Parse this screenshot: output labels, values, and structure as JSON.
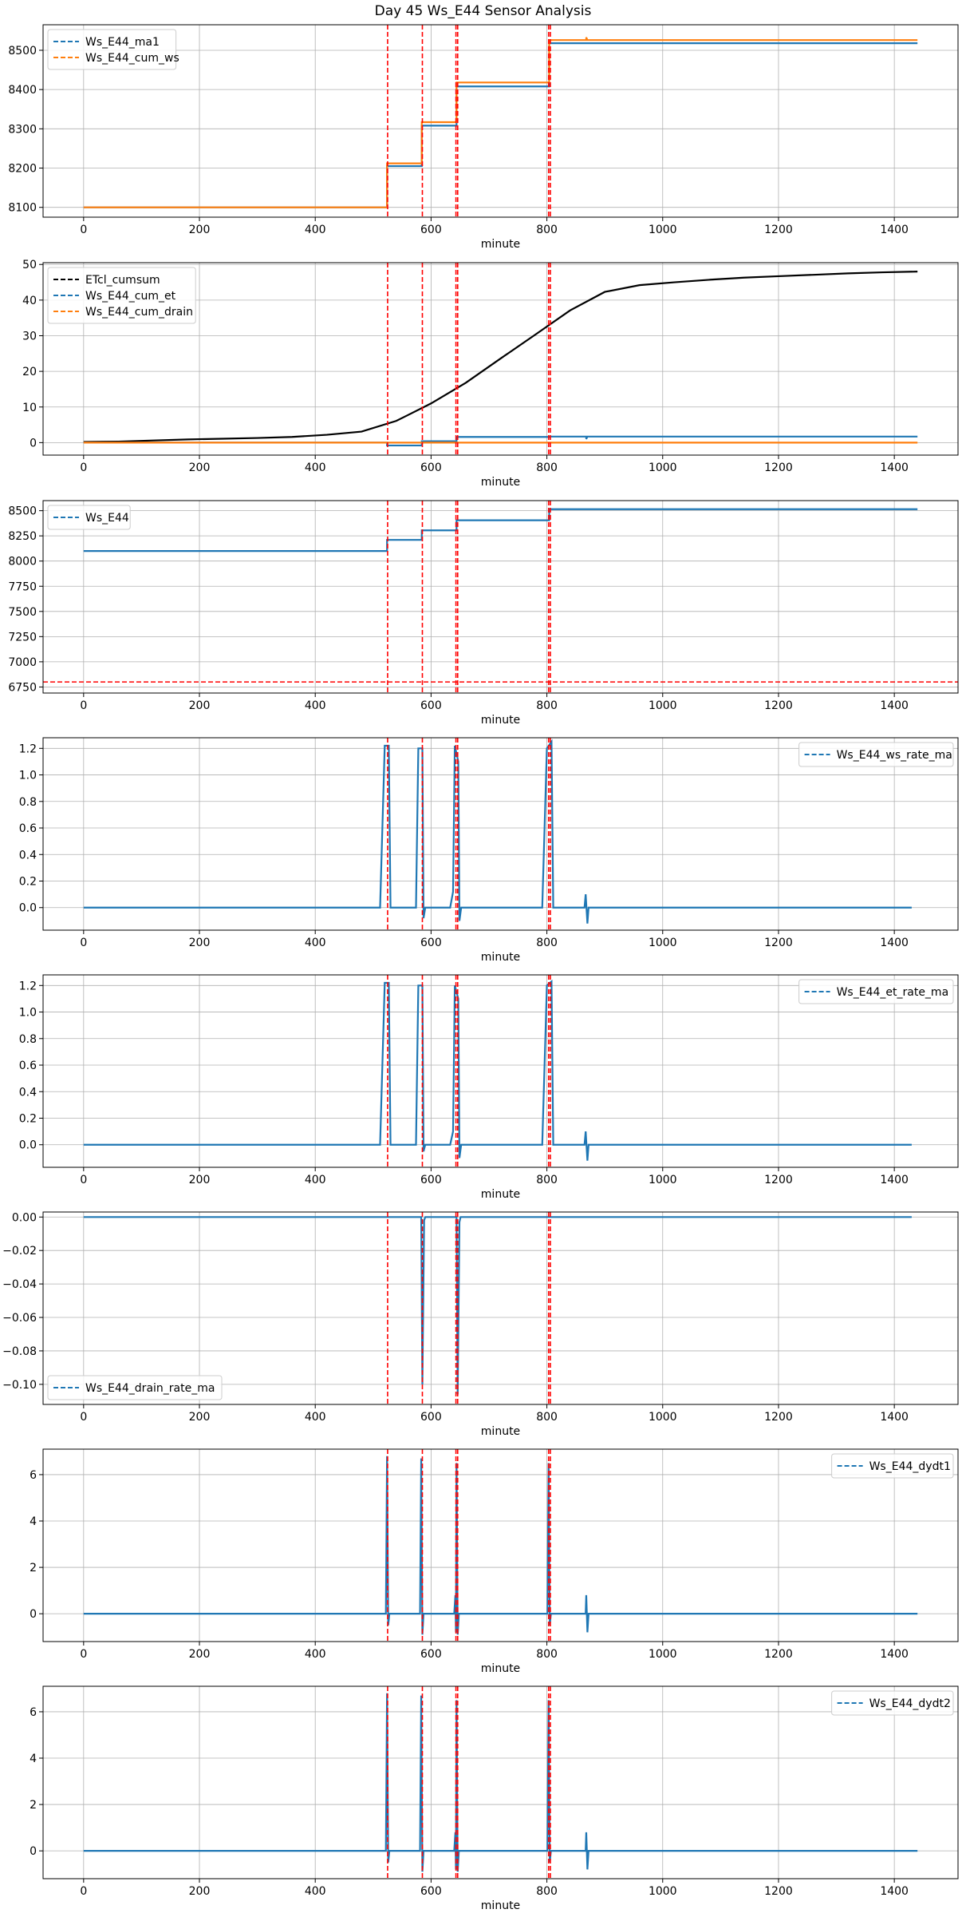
{
  "figure": {
    "title": "Day 45 Ws_E44 Sensor Analysis"
  },
  "colors": {
    "blue": "#1f77b4",
    "orange": "#ff7f0e",
    "black": "#000000",
    "red": "#ff0000",
    "grid": "#b0b0b0"
  },
  "chart_data": [
    {
      "type": "line",
      "xlabel": "minute",
      "xlim": [
        -70,
        1510
      ],
      "ylim": [
        8075,
        8565
      ],
      "xticks": [
        0,
        200,
        400,
        600,
        800,
        1000,
        1200,
        1400
      ],
      "yticks": [
        8100,
        8200,
        8300,
        8400,
        8500
      ],
      "legend_position": "upper left",
      "vlines": [
        525,
        585,
        643,
        646,
        803,
        806
      ],
      "hlines": [],
      "grid": true,
      "series": [
        {
          "name": "Ws_E44_ma1",
          "color": "blue",
          "style": "step",
          "points": [
            [
              0,
              8100
            ],
            [
              524,
              8100
            ],
            [
              524,
              8205
            ],
            [
              584,
              8205
            ],
            [
              584,
              8308
            ],
            [
              644,
              8308
            ],
            [
              644,
              8408
            ],
            [
              804,
              8408
            ],
            [
              804,
              8518
            ],
            [
              1440,
              8518
            ]
          ]
        },
        {
          "name": "Ws_E44_cum_ws",
          "color": "orange",
          "style": "step",
          "points": [
            [
              0,
              8100
            ],
            [
              524,
              8100
            ],
            [
              524,
              8212
            ],
            [
              584,
              8212
            ],
            [
              584,
              8317
            ],
            [
              644,
              8317
            ],
            [
              644,
              8418
            ],
            [
              804,
              8418
            ],
            [
              804,
              8526
            ],
            [
              868,
              8526
            ],
            [
              868,
              8533
            ],
            [
              870,
              8526
            ],
            [
              1440,
              8526
            ]
          ]
        }
      ]
    },
    {
      "type": "line",
      "xlabel": "minute",
      "xlim": [
        -70,
        1510
      ],
      "ylim": [
        -3.5,
        50.5
      ],
      "xticks": [
        0,
        200,
        400,
        600,
        800,
        1000,
        1200,
        1400
      ],
      "yticks": [
        0,
        10,
        20,
        30,
        40,
        50
      ],
      "legend_position": "upper left",
      "vlines": [
        525,
        585,
        643,
        646,
        803,
        806
      ],
      "hlines": [],
      "grid": true,
      "series": [
        {
          "name": "ETcl_cumsum",
          "color": "black",
          "style": "step",
          "points": [
            [
              0,
              0.2
            ],
            [
              60,
              0.3
            ],
            [
              120,
              0.6
            ],
            [
              180,
              0.9
            ],
            [
              240,
              1.1
            ],
            [
              300,
              1.3
            ],
            [
              360,
              1.6
            ],
            [
              420,
              2.2
            ],
            [
              480,
              3.1
            ],
            [
              540,
              6.1
            ],
            [
              600,
              11.0
            ],
            [
              660,
              16.8
            ],
            [
              720,
              23.6
            ],
            [
              780,
              30.3
            ],
            [
              840,
              37.1
            ],
            [
              900,
              42.3
            ],
            [
              960,
              44.2
            ],
            [
              1020,
              45.0
            ],
            [
              1080,
              45.7
            ],
            [
              1140,
              46.3
            ],
            [
              1200,
              46.7
            ],
            [
              1260,
              47.1
            ],
            [
              1320,
              47.5
            ],
            [
              1380,
              47.8
            ],
            [
              1440,
              48.0
            ]
          ]
        },
        {
          "name": "Ws_E44_cum_et",
          "color": "blue",
          "style": "step",
          "points": [
            [
              0,
              0
            ],
            [
              524,
              0
            ],
            [
              524,
              -0.8
            ],
            [
              584,
              -0.8
            ],
            [
              584,
              0.4
            ],
            [
              644,
              0.4
            ],
            [
              644,
              1.6
            ],
            [
              804,
              1.6
            ],
            [
              804,
              1.7
            ],
            [
              868,
              1.7
            ],
            [
              868,
              1.0
            ],
            [
              870,
              1.7
            ],
            [
              1440,
              1.7
            ]
          ]
        },
        {
          "name": "Ws_E44_cum_drain",
          "color": "orange",
          "style": "step",
          "points": [
            [
              0,
              0
            ],
            [
              1440,
              0
            ]
          ]
        }
      ]
    },
    {
      "type": "line",
      "xlabel": "minute",
      "xlim": [
        -70,
        1510
      ],
      "ylim": [
        6690,
        8600
      ],
      "xticks": [
        0,
        200,
        400,
        600,
        800,
        1000,
        1200,
        1400
      ],
      "yticks": [
        6750,
        7000,
        7250,
        7500,
        7750,
        8000,
        8250,
        8500
      ],
      "legend_position": "upper left",
      "vlines": [
        525,
        585,
        643,
        646,
        803,
        806
      ],
      "hlines": [
        6800
      ],
      "grid": true,
      "series": [
        {
          "name": "Ws_E44",
          "color": "blue",
          "style": "step",
          "points": [
            [
              0,
              8100
            ],
            [
              524,
              8100
            ],
            [
              524,
              8210
            ],
            [
              584,
              8210
            ],
            [
              584,
              8305
            ],
            [
              644,
              8305
            ],
            [
              644,
              8405
            ],
            [
              804,
              8405
            ],
            [
              804,
              8515
            ],
            [
              1440,
              8515
            ]
          ]
        }
      ]
    },
    {
      "type": "line",
      "xlabel": "minute",
      "xlim": [
        -70,
        1510
      ],
      "ylim": [
        -0.17,
        1.28
      ],
      "xticks": [
        0,
        200,
        400,
        600,
        800,
        1000,
        1200,
        1400
      ],
      "yticks": [
        0.0,
        0.2,
        0.4,
        0.6,
        0.8,
        1.0,
        1.2
      ],
      "legend_position": "upper right",
      "vlines": [
        525,
        585,
        643,
        646,
        803,
        806
      ],
      "hlines": [],
      "grid": true,
      "series": [
        {
          "name": "Ws_E44_ws_rate_ma",
          "color": "blue",
          "style": "line",
          "points": [
            [
              0,
              0
            ],
            [
              512,
              0
            ],
            [
              520,
              1.22
            ],
            [
              527,
              1.22
            ],
            [
              530,
              0
            ],
            [
              574,
              0
            ],
            [
              578,
              1.2
            ],
            [
              585,
              1.2
            ],
            [
              587,
              -0.08
            ],
            [
              590,
              0
            ],
            [
              633,
              0
            ],
            [
              638,
              0.12
            ],
            [
              641,
              1.22
            ],
            [
              647,
              1.1
            ],
            [
              649,
              -0.1
            ],
            [
              652,
              0
            ],
            [
              792,
              0
            ],
            [
              800,
              1.2
            ],
            [
              808,
              1.25
            ],
            [
              811,
              0
            ],
            [
              865,
              0
            ],
            [
              867,
              0.1
            ],
            [
              870,
              -0.12
            ],
            [
              872,
              0
            ],
            [
              1430,
              0
            ]
          ]
        }
      ]
    },
    {
      "type": "line",
      "xlabel": "minute",
      "xlim": [
        -70,
        1510
      ],
      "ylim": [
        -0.17,
        1.28
      ],
      "xticks": [
        0,
        200,
        400,
        600,
        800,
        1000,
        1200,
        1400
      ],
      "yticks": [
        0.0,
        0.2,
        0.4,
        0.6,
        0.8,
        1.0,
        1.2
      ],
      "legend_position": "upper right",
      "vlines": [
        525,
        585,
        643,
        646,
        803,
        806
      ],
      "hlines": [],
      "grid": true,
      "series": [
        {
          "name": "Ws_E44_et_rate_ma",
          "color": "blue",
          "style": "line",
          "points": [
            [
              0,
              0
            ],
            [
              512,
              0
            ],
            [
              520,
              1.22
            ],
            [
              527,
              1.22
            ],
            [
              530,
              0
            ],
            [
              574,
              0
            ],
            [
              578,
              1.2
            ],
            [
              585,
              1.2
            ],
            [
              587,
              -0.05
            ],
            [
              590,
              0
            ],
            [
              633,
              0
            ],
            [
              638,
              0.1
            ],
            [
              641,
              1.2
            ],
            [
              647,
              1.1
            ],
            [
              649,
              -0.1
            ],
            [
              652,
              0
            ],
            [
              792,
              0
            ],
            [
              800,
              1.2
            ],
            [
              808,
              1.23
            ],
            [
              811,
              0
            ],
            [
              865,
              0
            ],
            [
              867,
              0.1
            ],
            [
              870,
              -0.12
            ],
            [
              872,
              0
            ],
            [
              1430,
              0
            ]
          ]
        }
      ]
    },
    {
      "type": "line",
      "xlabel": "minute",
      "xlim": [
        -70,
        1510
      ],
      "ylim": [
        -0.112,
        0.003
      ],
      "xticks": [
        0,
        200,
        400,
        600,
        800,
        1000,
        1200,
        1400
      ],
      "yticks": [
        -0.1,
        -0.08,
        -0.06,
        -0.04,
        -0.02,
        0.0
      ],
      "legend_position": "lower left",
      "vlines": [
        525,
        585,
        643,
        646,
        803,
        806
      ],
      "hlines": [],
      "grid": true,
      "series": [
        {
          "name": "Ws_E44_drain_rate_ma",
          "color": "blue",
          "style": "line",
          "points": [
            [
              0,
              0
            ],
            [
              583,
              0
            ],
            [
              585,
              -0.1
            ],
            [
              588,
              -0.002
            ],
            [
              590,
              0
            ],
            [
              644,
              0
            ],
            [
              646,
              -0.106
            ],
            [
              649,
              -0.003
            ],
            [
              651,
              0
            ],
            [
              1430,
              0
            ]
          ]
        }
      ]
    },
    {
      "type": "line",
      "xlabel": "minute",
      "xlim": [
        -70,
        1510
      ],
      "ylim": [
        -1.2,
        7.1
      ],
      "xticks": [
        0,
        200,
        400,
        600,
        800,
        1000,
        1200,
        1400
      ],
      "yticks": [
        0,
        2,
        4,
        6
      ],
      "legend_position": "upper right",
      "vlines": [
        525,
        585,
        643,
        646,
        803,
        806
      ],
      "hlines": [],
      "grid": true,
      "series": [
        {
          "name": "Ws_E44_dydt1",
          "color": "blue",
          "style": "line",
          "points": [
            [
              0,
              0
            ],
            [
              522,
              0
            ],
            [
              524,
              6.8
            ],
            [
              526,
              -0.5
            ],
            [
              528,
              0
            ],
            [
              581,
              0
            ],
            [
              583,
              6.7
            ],
            [
              585,
              -0.9
            ],
            [
              587,
              0
            ],
            [
              640,
              0
            ],
            [
              642,
              0.8
            ],
            [
              643,
              -0.8
            ],
            [
              644,
              6.5
            ],
            [
              646,
              -0.9
            ],
            [
              648,
              0
            ],
            [
              801,
              0
            ],
            [
              803,
              6.5
            ],
            [
              805,
              -0.5
            ],
            [
              807,
              0
            ],
            [
              867,
              0
            ],
            [
              868,
              0.8
            ],
            [
              870,
              -0.8
            ],
            [
              872,
              0
            ],
            [
              1440,
              0
            ]
          ]
        }
      ]
    },
    {
      "type": "line",
      "xlabel": "minute",
      "xlim": [
        -70,
        1510
      ],
      "ylim": [
        -1.2,
        7.1
      ],
      "xticks": [
        0,
        200,
        400,
        600,
        800,
        1000,
        1200,
        1400
      ],
      "yticks": [
        0,
        2,
        4,
        6
      ],
      "legend_position": "upper right",
      "vlines": [
        525,
        585,
        643,
        646,
        803,
        806
      ],
      "hlines": [],
      "grid": true,
      "series": [
        {
          "name": "Ws_E44_dydt2",
          "color": "blue",
          "style": "line",
          "points": [
            [
              0,
              0
            ],
            [
              522,
              0
            ],
            [
              524,
              6.8
            ],
            [
              526,
              -0.5
            ],
            [
              528,
              0
            ],
            [
              581,
              0
            ],
            [
              583,
              6.7
            ],
            [
              585,
              -0.9
            ],
            [
              587,
              0
            ],
            [
              640,
              0
            ],
            [
              642,
              0.8
            ],
            [
              643,
              -0.8
            ],
            [
              644,
              6.5
            ],
            [
              646,
              -0.9
            ],
            [
              648,
              0
            ],
            [
              801,
              0
            ],
            [
              803,
              6.5
            ],
            [
              805,
              -0.5
            ],
            [
              807,
              0
            ],
            [
              867,
              0
            ],
            [
              868,
              0.8
            ],
            [
              870,
              -0.8
            ],
            [
              872,
              0
            ],
            [
              1440,
              0
            ]
          ]
        }
      ]
    }
  ]
}
